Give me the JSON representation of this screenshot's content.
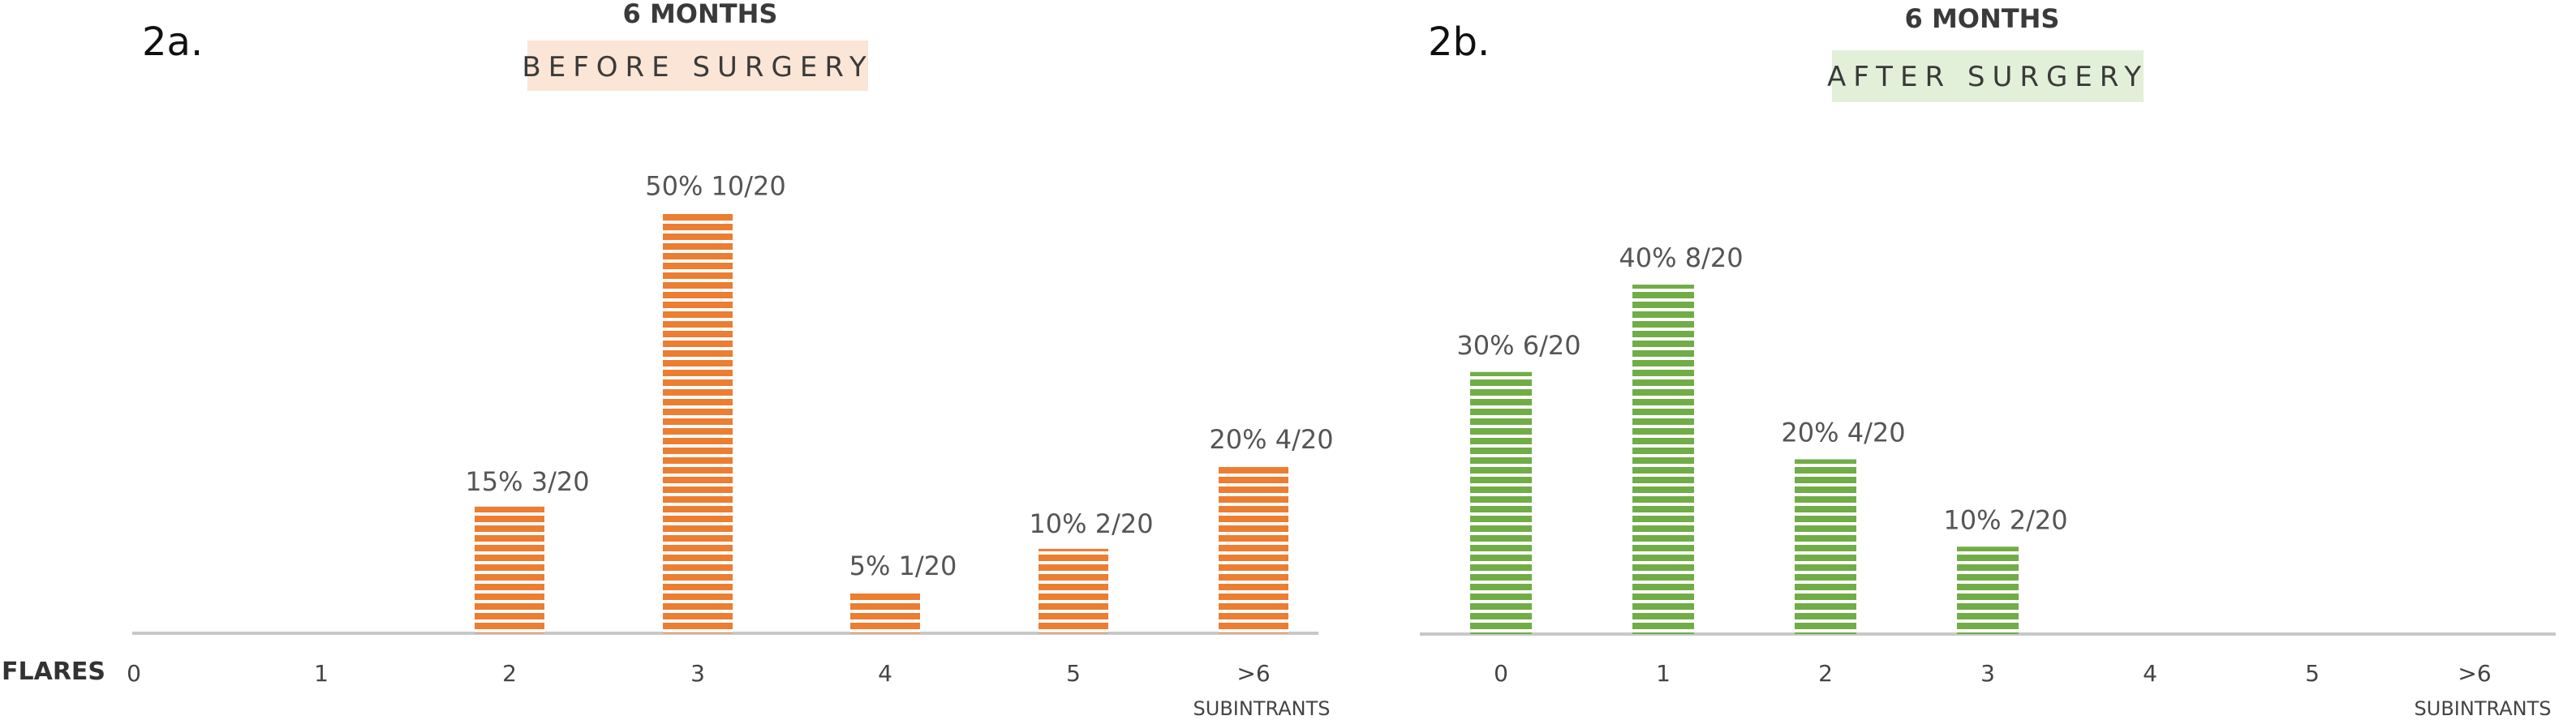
{
  "axis_label": "FLARES",
  "chart_data": [
    {
      "type": "bar",
      "panel": "2a.",
      "title": "6 MONTHS",
      "subtitle": "BEFORE SURGERY",
      "categories": [
        "0",
        "1",
        "2",
        "3",
        "4",
        "5",
        ">6"
      ],
      "category_sublabels": [
        "",
        "",
        "",
        "",
        "",
        "",
        "SUBINTRANTS"
      ],
      "values": [
        0,
        0,
        15,
        50,
        5,
        10,
        20
      ],
      "data_labels": [
        "",
        "",
        "15% 3/20",
        "50% 10/20",
        "5% 1/20",
        "10% 2/20",
        "20% 4/20"
      ],
      "ylim": [
        0,
        55
      ],
      "colors": {
        "bar": "#ED7D31",
        "stripe": "#ffffff",
        "highlight": "#FBE5D6"
      }
    },
    {
      "type": "bar",
      "panel": "2b.",
      "title": "6 MONTHS",
      "subtitle": "AFTER SURGERY",
      "categories": [
        "0",
        "1",
        "2",
        "3",
        "4",
        "5",
        ">6"
      ],
      "category_sublabels": [
        "",
        "",
        "",
        "",
        "",
        "",
        "SUBINTRANTS"
      ],
      "values": [
        30,
        40,
        20,
        10,
        0,
        0,
        0
      ],
      "data_labels": [
        "30% 6/20",
        "40% 8/20",
        "20% 4/20",
        "10% 2/20",
        "",
        "",
        ""
      ],
      "ylim": [
        0,
        55
      ],
      "colors": {
        "bar": "#70AD47",
        "stripe": "#ffffff",
        "highlight": "#E2F0D9"
      }
    }
  ]
}
